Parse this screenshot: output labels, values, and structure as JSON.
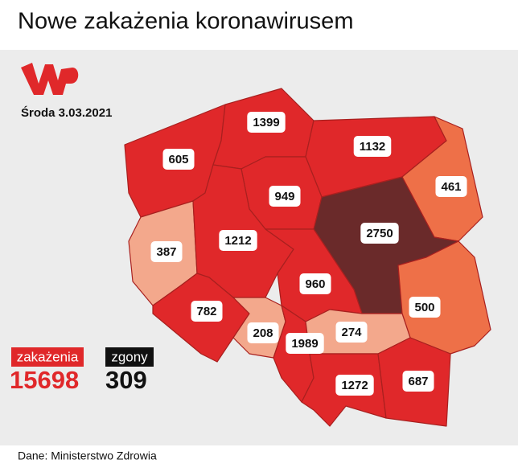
{
  "title": "Nowe zakażenia koronawirusem",
  "date": "Środa 3.03.2021",
  "regions": [
    {
      "value": 605,
      "color": "#e0282a"
    },
    {
      "value": 1399,
      "color": "#e0282a"
    },
    {
      "value": 1132,
      "color": "#e0282a"
    },
    {
      "value": 461,
      "color": "#ee7048"
    },
    {
      "value": 949,
      "color": "#e0282a"
    },
    {
      "value": 387,
      "color": "#f3a88c"
    },
    {
      "value": 1212,
      "color": "#e0282a"
    },
    {
      "value": 2750,
      "color": "#6a2a2a"
    },
    {
      "value": 960,
      "color": "#e0282a"
    },
    {
      "value": 500,
      "color": "#ee7048"
    },
    {
      "value": 782,
      "color": "#e0282a"
    },
    {
      "value": 208,
      "color": "#f3a88c"
    },
    {
      "value": 1989,
      "color": "#e0282a"
    },
    {
      "value": 274,
      "color": "#f3a88c"
    },
    {
      "value": 1272,
      "color": "#e0282a"
    },
    {
      "value": 687,
      "color": "#e0282a"
    }
  ],
  "totals": {
    "cases_label": "zakażenia",
    "cases": 15698,
    "deaths_label": "zgony",
    "deaths": 309
  },
  "source": "Dane: Ministerstwo Zdrowia"
}
